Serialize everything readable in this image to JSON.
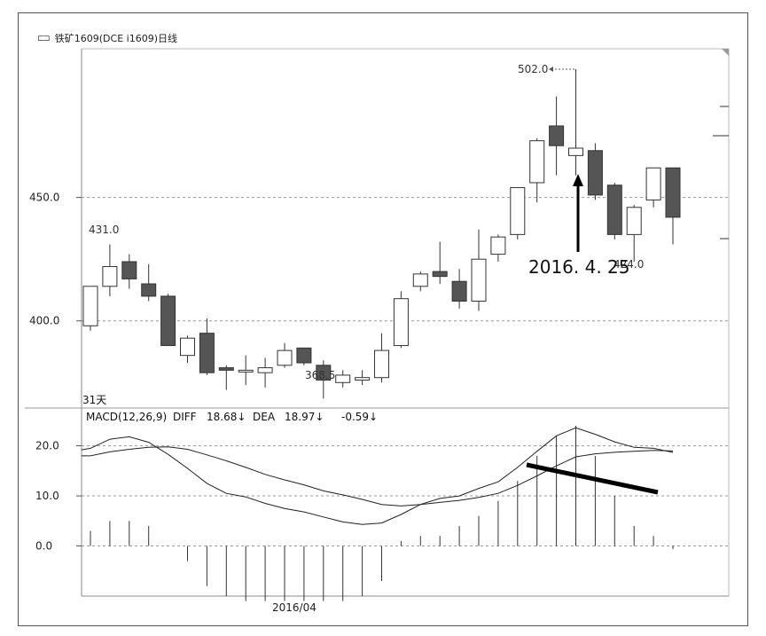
{
  "title": "铁矿1609(DCE i1609)日线",
  "chart_data": [
    {
      "type": "candlestick",
      "title": "铁矿1609(DCE i1609)日线",
      "y_ticks": [
        400.0,
        450.0
      ],
      "y_tick_labels": [
        "400.0",
        "450.0"
      ],
      "ylim": [
        360,
        502
      ],
      "period_label": "31天",
      "annotations": {
        "high_label": "502.0",
        "low_label": "368.5",
        "start_high_label": "431.0",
        "recent_low_label": "424.0",
        "date_note": "2016. 4. 25"
      },
      "candles": [
        {
          "open": 398,
          "high": 414,
          "low": 396,
          "close": 414
        },
        {
          "open": 414,
          "high": 431,
          "low": 410,
          "close": 422
        },
        {
          "open": 424,
          "high": 427,
          "low": 413,
          "close": 417
        },
        {
          "open": 415,
          "high": 423,
          "low": 408,
          "close": 410
        },
        {
          "open": 410,
          "high": 411,
          "low": 390,
          "close": 390
        },
        {
          "open": 386,
          "high": 394,
          "low": 383,
          "close": 393
        },
        {
          "open": 395,
          "high": 401,
          "low": 378,
          "close": 379
        },
        {
          "open": 381,
          "high": 382,
          "low": 372,
          "close": 380
        },
        {
          "open": 380,
          "high": 386,
          "low": 374,
          "close": 380
        },
        {
          "open": 379,
          "high": 385,
          "low": 373,
          "close": 381
        },
        {
          "open": 382,
          "high": 391,
          "low": 381,
          "close": 388
        },
        {
          "open": 389,
          "high": 389,
          "low": 382,
          "close": 383
        },
        {
          "open": 382,
          "high": 384,
          "low": 368.5,
          "close": 376
        },
        {
          "open": 375,
          "high": 380,
          "low": 373,
          "close": 378
        },
        {
          "open": 376,
          "high": 380,
          "low": 374,
          "close": 377
        },
        {
          "open": 377,
          "high": 395,
          "low": 375,
          "close": 388
        },
        {
          "open": 390,
          "high": 412,
          "low": 389,
          "close": 409
        },
        {
          "open": 414,
          "high": 420,
          "low": 412,
          "close": 419
        },
        {
          "open": 420,
          "high": 432,
          "low": 415,
          "close": 418
        },
        {
          "open": 416,
          "high": 421,
          "low": 405,
          "close": 408
        },
        {
          "open": 408,
          "high": 437,
          "low": 404,
          "close": 425
        },
        {
          "open": 427,
          "high": 435,
          "low": 424,
          "close": 434
        },
        {
          "open": 435,
          "high": 454,
          "low": 433,
          "close": 454
        },
        {
          "open": 456,
          "high": 474,
          "low": 448,
          "close": 473
        },
        {
          "open": 479,
          "high": 491,
          "low": 459,
          "close": 471
        },
        {
          "open": 467,
          "high": 502,
          "low": 459,
          "close": 470
        },
        {
          "open": 469,
          "high": 472,
          "low": 449,
          "close": 451
        },
        {
          "open": 455,
          "high": 456,
          "low": 433,
          "close": 435
        },
        {
          "open": 435,
          "high": 447,
          "low": 424,
          "close": 446
        },
        {
          "open": 449,
          "high": 462,
          "low": 446,
          "close": 462
        },
        {
          "open": 462,
          "high": 462,
          "low": 431,
          "close": 442
        }
      ]
    },
    {
      "type": "line",
      "title": "MACD(12,26,9)",
      "legend": {
        "name": "MACD(12,26,9)",
        "diff_label": "DIFF",
        "diff_value": "18.68↓",
        "dea_label": "DEA",
        "dea_value": "18.97↓",
        "macd_value": "-0.59↓"
      },
      "x_tick_label": "2016/04",
      "y_ticks": [
        0.0,
        10.0,
        20.0
      ],
      "y_tick_labels": [
        "0.0",
        "10.0",
        "20.0"
      ],
      "ylim": [
        -10,
        24
      ],
      "series": [
        {
          "name": "DIFF",
          "values": [
            19.5,
            21.3,
            21.8,
            20.7,
            18.3,
            15.5,
            12.5,
            10.5,
            9.8,
            8.5,
            7.5,
            6.8,
            5.8,
            4.8,
            4.3,
            4.6,
            6.3,
            8.3,
            9.5,
            10.0,
            11.5,
            12.8,
            15.7,
            18.9,
            22.0,
            23.6,
            22.3,
            20.8,
            19.7,
            19.5,
            18.68
          ]
        },
        {
          "name": "DEA",
          "values": [
            18.0,
            18.8,
            19.3,
            19.7,
            19.8,
            19.3,
            18.2,
            17.0,
            15.7,
            14.3,
            13.2,
            12.2,
            11.0,
            10.2,
            9.3,
            8.3,
            8.0,
            8.3,
            8.7,
            9.1,
            9.7,
            10.5,
            12.1,
            14.0,
            16.0,
            17.8,
            18.4,
            18.7,
            18.9,
            19.1,
            18.97
          ]
        },
        {
          "name": "MACD",
          "values": [
            3.0,
            5.0,
            5.0,
            4.0,
            0.0,
            -3.0,
            -8.0,
            -10.0,
            -11.0,
            -11.0,
            -11.0,
            -11.0,
            -11.0,
            -11.0,
            -10.0,
            -7.0,
            1.0,
            2.0,
            2.0,
            4.0,
            6.0,
            9.0,
            13.0,
            18.0,
            22.0,
            24.0,
            18.0,
            10.0,
            4.0,
            2.0,
            -0.59
          ]
        }
      ]
    }
  ]
}
